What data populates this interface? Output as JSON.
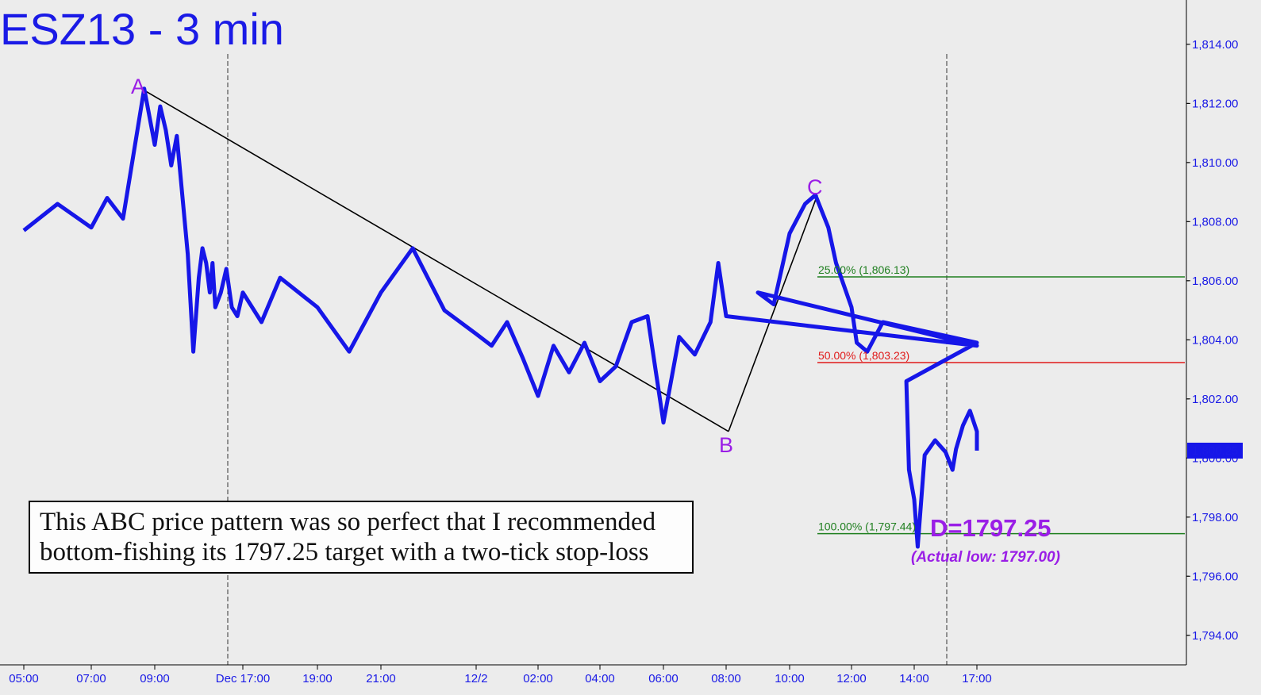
{
  "chart_data": {
    "type": "line",
    "title": "ESZ13 - 3 min",
    "ylim": [
      1793,
      1815.5
    ],
    "y_ticks": [
      1794,
      1796,
      1798,
      1800,
      1802,
      1804,
      1806,
      1808,
      1810,
      1812,
      1814
    ],
    "y_tick_labels": [
      "1,794.00",
      "1,796.00",
      "1,798.00",
      "1,800.00",
      "1,802.00",
      "1,804.00",
      "1,806.00",
      "1,808.00",
      "1,810.00",
      "1,812.00",
      "1,814.00"
    ],
    "x_tick_labels": [
      "05:00",
      "07:00",
      "09:00",
      "Dec 17:00",
      "19:00",
      "21:00",
      "12/2",
      "02:00",
      "04:00",
      "06:00",
      "08:00",
      "10:00",
      "12:00",
      "14:00",
      "17:00"
    ],
    "last_price_label": "1,800.25",
    "series": [
      {
        "x": [
          "05:00",
          "06:00",
          "07:00",
          "07:30",
          "08:00",
          "08:40",
          "09:00",
          "09:30",
          "10:00",
          "10:30",
          "11:00",
          "11:30",
          "12:00",
          "12:30",
          "13:00",
          "13:20",
          "13:40",
          "14:00",
          "14:15",
          "14:30",
          "15:00",
          "15:30",
          "16:00",
          "16:30",
          "17:00",
          "17:30",
          "18:00",
          "19:00",
          "20:00",
          "21:00",
          "22:00",
          "23:00",
          "12/2",
          "00:30",
          "01:00",
          "01:30",
          "02:00",
          "02:30",
          "03:00",
          "03:30",
          "04:00",
          "04:30",
          "05:00",
          "05:30",
          "06:00",
          "06:30",
          "07:00",
          "07:30",
          "07:45",
          "08:00",
          "08:30",
          "09:00",
          "09:30",
          "10:00",
          "10:30",
          "10:50",
          "11:15",
          "11:30",
          "12:00",
          "12:10",
          "12:30",
          "13:00",
          "13:30",
          "13:45",
          "13:50",
          "14:00",
          "14:10",
          "14:30",
          "15:00",
          "15:30",
          "15:50",
          "16:00",
          "16:20",
          "16:40",
          "17:00",
          "17:15",
          "17:30"
        ],
        "values": [
          1807.7,
          1808.6,
          1807.8,
          1808.8,
          1808.1,
          1812.5,
          1810.6,
          1811.9,
          1811.1,
          1809.9,
          1810.9,
          1808.9,
          1806.9,
          1803.6,
          1806.1,
          1807.1,
          1806.6,
          1805.6,
          1806.6,
          1805.1,
          1805.6,
          1806.4,
          1805.1,
          1804.8,
          1805.6,
          1804.6,
          1806.1,
          1805.1,
          1803.6,
          1805.6,
          1807.1,
          1805.0,
          1804.2,
          1803.8,
          1804.6,
          1803.4,
          1802.1,
          1803.8,
          1802.9,
          1803.9,
          1802.6,
          1803.1,
          1804.6,
          1804.8,
          1801.2,
          1804.1,
          1803.5,
          1804.6,
          1806.6,
          1804.8,
          1803.8,
          1805.6,
          1805.2,
          1807.6,
          1808.6,
          1808.9,
          1807.8,
          1806.6,
          1805.1,
          1803.9,
          1803.6,
          1804.6,
          1803.9,
          1802.6,
          1799.6,
          1798.6,
          1797.0,
          1800.1,
          1800.6,
          1800.2,
          1799.6,
          1800.3,
          1801.1,
          1801.6,
          1800.9,
          1800.5,
          1800.25
        ]
      }
    ],
    "annotations": {
      "points": [
        {
          "label": "A",
          "x": "08:40",
          "price": 1812.5
        },
        {
          "label": "B",
          "x": "08:00",
          "price": 1800.9
        },
        {
          "label": "C",
          "x": "10:50",
          "price": 1808.9
        }
      ],
      "fib_levels": [
        {
          "label": "25.00% (1,806.13)",
          "price": 1806.13,
          "color": "#1f7f1f"
        },
        {
          "label": "50.00% (1,803.23)",
          "price": 1803.23,
          "color": "#e01a1a"
        },
        {
          "label": "100.00% (1,797.44)",
          "price": 1797.44,
          "color": "#1f7f1f"
        }
      ],
      "target": "D=1797.25",
      "actual_low": "(Actual low: 1797.00)"
    },
    "note_lines": [
      "This ABC price pattern was so perfect that I recommended",
      "bottom-fishing its 1797.25 target with a two-tick stop-loss"
    ]
  }
}
